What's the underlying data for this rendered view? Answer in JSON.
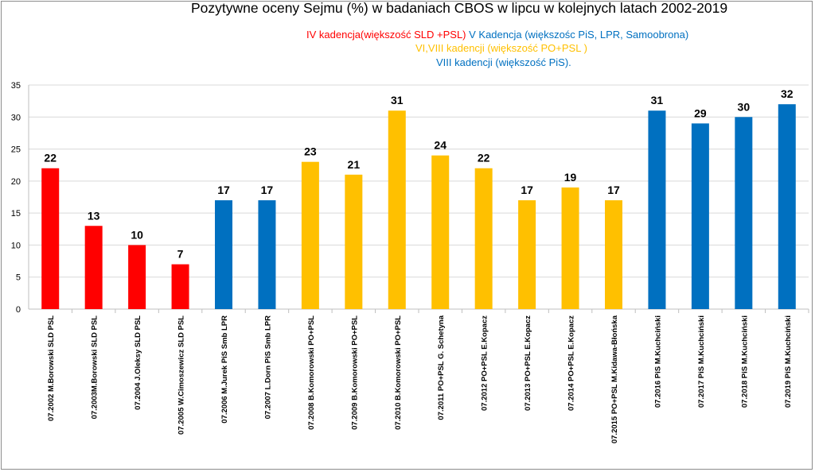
{
  "chart_data": {
    "type": "bar",
    "title": "Pozytywne oceny Sejmu (%) w badaniach CBOS w lipcu w  kolejnych latach  2002-2019",
    "subtitle_lines": [
      {
        "parts": [
          {
            "text": "IV kadencja(większość SLD +PSL)",
            "color": "#ff0000"
          },
          {
            "text": " V Kadencja  (większośc PiS, LPR, Samoobrona)",
            "color": "#0070c0"
          }
        ]
      },
      {
        "parts": [
          {
            "text": "VI,VIII kadencji (większość PO+PSL  )",
            "color": "#ffc000"
          }
        ]
      },
      {
        "parts": [
          {
            "text": "VIII kadencji (większość PiS).",
            "color": "#0070c0"
          }
        ]
      }
    ],
    "categories": [
      "07.2002 M.Borowski SLD PSL",
      "07.2003M.Borowski SLD PSL",
      "07.2004 J.Oleksy SLD PSL",
      "07.2005 W.Cimoszewicz SLD PSL",
      "07.2006 M.Jurek PiS Smb LPR",
      "07.2007 L.Dorn PiS Smb LPR",
      "07.2008 B.Komorowski PO+PSL",
      "07.2009 B.Komorowski PO+PSL",
      "07.2010 B.Komorowski  PO+PSL",
      "07.2011 PO+PSL G. Schetyna",
      "07.2012 PO+PSL E.Kopacz",
      "07.2013 PO+PSL E.Kopacz",
      "07.2014 PO+PSL E.Kopacz",
      "07.2015 PO+PSL M.Kidawa-Błońska",
      "07.2016 PiS  M.Kuchciński",
      "07.2017 PiS M.Kuchciński",
      "07.2018 PiS M.Kuchciński",
      "07.2019  PiS M.Kuchciński"
    ],
    "values": [
      22,
      13,
      10,
      7,
      17,
      17,
      23,
      21,
      31,
      24,
      22,
      17,
      19,
      17,
      31,
      29,
      30,
      32
    ],
    "bar_colors": [
      "#ff0000",
      "#ff0000",
      "#ff0000",
      "#ff0000",
      "#0070c0",
      "#0070c0",
      "#ffc000",
      "#ffc000",
      "#ffc000",
      "#ffc000",
      "#ffc000",
      "#ffc000",
      "#ffc000",
      "#ffc000",
      "#0070c0",
      "#0070c0",
      "#0070c0",
      "#0070c0"
    ],
    "yticks": [
      0,
      5,
      10,
      15,
      20,
      25,
      30,
      35
    ],
    "ylim": [
      0,
      35
    ],
    "grid": true,
    "xlabel": "",
    "ylabel": ""
  }
}
